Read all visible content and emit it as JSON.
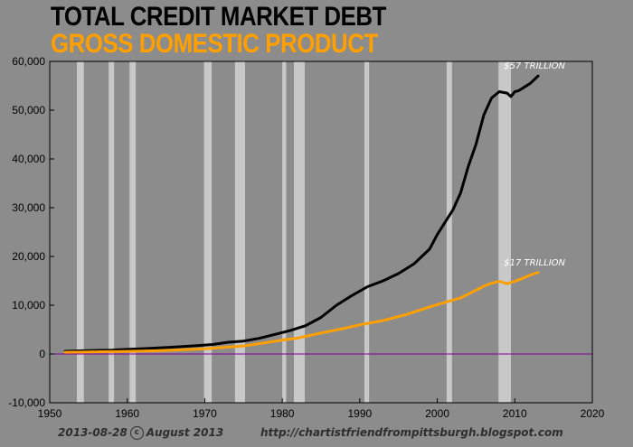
{
  "titles": {
    "line1": "TOTAL CREDIT MARKET DEBT",
    "line2": "GROSS DOMESTIC PRODUCT"
  },
  "footer": {
    "date": "2013-08-28",
    "copyright_symbol": "c",
    "month": "August 2013",
    "url": "http://chartistfriendfrompittsburgh.blogspot.com"
  },
  "colors": {
    "debt": "#000000",
    "gdp": "#ffa000",
    "zero_line": "#8000a0",
    "recession": "#c8c8c8",
    "background": "#8c8c8c"
  },
  "chart_data": {
    "type": "line",
    "xlim": [
      1950,
      2020
    ],
    "ylim": [
      -10000,
      60000
    ],
    "xticks": [
      1950,
      1960,
      1970,
      1980,
      1990,
      2000,
      2010,
      2020
    ],
    "yticks": [
      -10000,
      0,
      10000,
      20000,
      30000,
      40000,
      50000,
      60000
    ],
    "ytick_labels": [
      "-10,000",
      "0",
      "10,000",
      "20,000",
      "30,000",
      "40,000",
      "50,000",
      "60,000"
    ],
    "grid": false,
    "zero_line": 0,
    "recessions": [
      [
        1953.5,
        1954.4
      ],
      [
        1957.6,
        1958.3
      ],
      [
        1960.3,
        1961.1
      ],
      [
        1969.9,
        1970.9
      ],
      [
        1973.9,
        1975.2
      ],
      [
        1980.0,
        1980.5
      ],
      [
        1981.5,
        1982.9
      ],
      [
        1990.6,
        1991.2
      ],
      [
        2001.2,
        2001.9
      ],
      [
        2007.9,
        2009.5
      ]
    ],
    "series": [
      {
        "key": "debt",
        "x": [
          1952,
          1955,
          1958,
          1960,
          1963,
          1966,
          1969,
          1971,
          1973,
          1975,
          1977,
          1979,
          1981,
          1983,
          1985,
          1987,
          1989,
          1991,
          1993,
          1995,
          1997,
          1999,
          2000,
          2001,
          2002,
          2003,
          2004,
          2005,
          2006,
          2007,
          2008,
          2009,
          2009.5,
          2010,
          2010.5,
          2011,
          2012,
          2013
        ],
        "y": [
          550,
          700,
          800,
          950,
          1150,
          1400,
          1700,
          1950,
          2400,
          2650,
          3200,
          4000,
          4800,
          5800,
          7500,
          10000,
          12000,
          13800,
          15000,
          16500,
          18500,
          21500,
          24500,
          27000,
          29500,
          33000,
          38500,
          43000,
          49000,
          52500,
          53800,
          53500,
          52800,
          53800,
          54000,
          54500,
          55500,
          57000
        ]
      },
      {
        "key": "gdp",
        "x": [
          1952,
          1955,
          1960,
          1965,
          1970,
          1975,
          1978,
          1980,
          1982,
          1985,
          1988,
          1990,
          1993,
          1996,
          1999,
          2001,
          2003,
          2005,
          2006,
          2007,
          2008,
          2009,
          2010,
          2011,
          2012,
          2013
        ],
        "y": [
          360,
          400,
          530,
          720,
          1050,
          1650,
          2350,
          2850,
          3250,
          4300,
          5250,
          5980,
          6850,
          8100,
          9650,
          10600,
          11500,
          13100,
          13900,
          14500,
          14900,
          14400,
          14900,
          15500,
          16200,
          16700
        ]
      }
    ],
    "annotations": [
      {
        "text": "$57 TRILLION",
        "series": "debt"
      },
      {
        "text": "$17 TRILLION",
        "series": "gdp"
      }
    ]
  }
}
